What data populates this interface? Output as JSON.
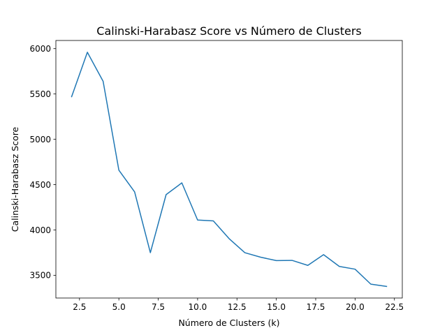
{
  "chart_data": {
    "type": "line",
    "title": "Calinski-Harabasz Score vs Número de Clusters",
    "xlabel": "Número de Clusters (k)",
    "ylabel": "Calinski-Harabasz Score",
    "xlim": [
      1.0,
      23.0
    ],
    "ylim": [
      3250,
      6090
    ],
    "x_ticks": [
      2.5,
      5.0,
      7.5,
      10.0,
      12.5,
      15.0,
      17.5,
      20.0,
      22.5
    ],
    "x_tick_labels": [
      "2.5",
      "5.0",
      "7.5",
      "10.0",
      "12.5",
      "15.0",
      "17.5",
      "20.0",
      "22.5"
    ],
    "y_ticks": [
      3500,
      4000,
      4500,
      5000,
      5500,
      6000
    ],
    "y_tick_labels": [
      "3500",
      "4000",
      "4500",
      "5000",
      "5500",
      "6000"
    ],
    "grid": false,
    "series": [
      {
        "color": "#1f77b4",
        "x": [
          2,
          3,
          4,
          5,
          6,
          7,
          8,
          9,
          10,
          11,
          12,
          13,
          14,
          15,
          16,
          17,
          18,
          19,
          20,
          21,
          22
        ],
        "y": [
          5470,
          5960,
          5640,
          4660,
          4420,
          3750,
          4390,
          4520,
          4110,
          4100,
          3905,
          3750,
          3700,
          3663,
          3665,
          3610,
          3728,
          3598,
          3568,
          3403,
          3378
        ]
      }
    ]
  }
}
